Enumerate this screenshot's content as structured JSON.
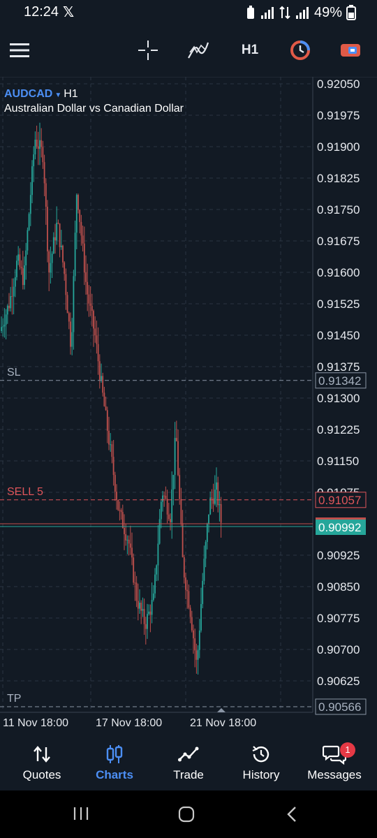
{
  "status": {
    "time": "12:24",
    "battery": "49%"
  },
  "toolbar": {
    "timeframe": "H1"
  },
  "chart": {
    "symbol": "AUDCAD",
    "timeframe": "H1",
    "description": "Australian Dollar vs Canadian Dollar",
    "price_labels": [
      "0.92050",
      "0.91975",
      "0.91900",
      "0.91825",
      "0.91750",
      "0.91675",
      "0.91600",
      "0.91525",
      "0.91450",
      "0.91375",
      "0.91300",
      "0.91225",
      "0.91150",
      "0.91075",
      "0.90925",
      "0.90850",
      "0.90775",
      "0.90700",
      "0.90625"
    ],
    "time_labels": [
      "11 Nov 18:00",
      "17 Nov 18:00",
      "21 Nov 18:00"
    ],
    "sl": {
      "label": "SL",
      "price": "0.91342"
    },
    "order": {
      "label": "SELL 5",
      "price": "0.91057"
    },
    "current": {
      "price": "0.90992"
    },
    "tp": {
      "label": "TP",
      "price": "0.90566"
    },
    "colors": {
      "bull": "#26a69a",
      "bear": "#c0504d",
      "accent": "#4c8ff5",
      "sell": "#e0555a"
    }
  },
  "nav": {
    "items": [
      {
        "id": "quotes",
        "label": "Quotes",
        "icon": "quotes-arrows-icon"
      },
      {
        "id": "charts",
        "label": "Charts",
        "icon": "candles-icon",
        "active": true
      },
      {
        "id": "trade",
        "label": "Trade",
        "icon": "trade-line-icon"
      },
      {
        "id": "history",
        "label": "History",
        "icon": "history-clock-icon"
      },
      {
        "id": "messages",
        "label": "Messages",
        "icon": "messages-icon",
        "badge": "1"
      }
    ]
  }
}
